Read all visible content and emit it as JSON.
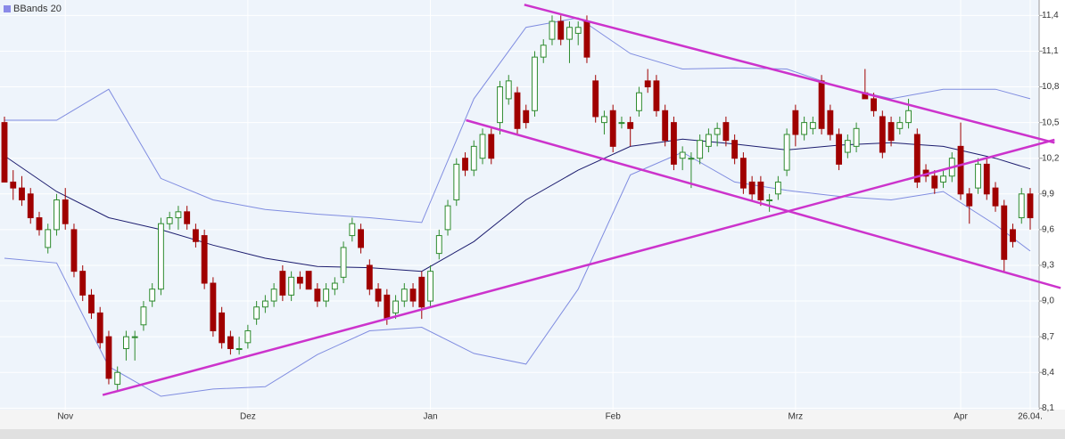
{
  "chart_data": {
    "type": "candlestick",
    "legend": "BBands 20",
    "categories": [
      null,
      null,
      null,
      null,
      null,
      null,
      null,
      "Nov",
      null,
      null,
      null,
      null,
      null,
      null,
      null,
      null,
      null,
      null,
      null,
      null,
      null,
      null,
      null,
      null,
      null,
      null,
      null,
      null,
      "Dez",
      null,
      null,
      null,
      null,
      null,
      null,
      null,
      null,
      null,
      null,
      null,
      null,
      null,
      null,
      null,
      null,
      null,
      null,
      null,
      null,
      "Jan",
      null,
      null,
      null,
      null,
      null,
      null,
      null,
      null,
      null,
      null,
      null,
      null,
      null,
      null,
      null,
      null,
      null,
      null,
      null,
      null,
      "Feb",
      null,
      null,
      null,
      null,
      null,
      null,
      null,
      null,
      null,
      null,
      null,
      null,
      null,
      null,
      null,
      null,
      null,
      null,
      null,
      null,
      "Mrz",
      null,
      null,
      null,
      null,
      null,
      null,
      null,
      null,
      null,
      null,
      null,
      null,
      null,
      null,
      null,
      null,
      null,
      null,
      "Apr",
      null,
      null,
      null,
      null,
      null,
      null,
      null,
      "26.04."
    ],
    "candles": [
      [
        10.5,
        10.55,
        10.0,
        10.0
      ],
      [
        10.0,
        10.1,
        9.85,
        9.95
      ],
      [
        9.95,
        10.05,
        9.8,
        9.85
      ],
      [
        9.9,
        9.95,
        9.65,
        9.7
      ],
      [
        9.7,
        9.75,
        9.55,
        9.6
      ],
      [
        9.45,
        9.65,
        9.4,
        9.6
      ],
      [
        9.6,
        9.9,
        9.55,
        9.85
      ],
      [
        9.85,
        9.95,
        9.6,
        9.65
      ],
      [
        9.6,
        9.65,
        9.2,
        9.25
      ],
      [
        9.25,
        9.3,
        9.0,
        9.05
      ],
      [
        9.05,
        9.1,
        8.85,
        8.9
      ],
      [
        8.9,
        8.95,
        8.6,
        8.65
      ],
      [
        8.7,
        8.75,
        8.3,
        8.35
      ],
      [
        8.3,
        8.45,
        8.25,
        8.4
      ],
      [
        8.6,
        8.75,
        8.5,
        8.7
      ],
      [
        8.7,
        8.75,
        8.5,
        8.7
      ],
      [
        8.8,
        9.0,
        8.75,
        8.95
      ],
      [
        9.0,
        9.15,
        8.95,
        9.1
      ],
      [
        9.1,
        9.7,
        9.05,
        9.65
      ],
      [
        9.65,
        9.75,
        9.6,
        9.7
      ],
      [
        9.7,
        9.8,
        9.6,
        9.75
      ],
      [
        9.75,
        9.8,
        9.6,
        9.65
      ],
      [
        9.6,
        9.65,
        9.45,
        9.5
      ],
      [
        9.55,
        9.6,
        9.1,
        9.15
      ],
      [
        9.15,
        9.2,
        8.7,
        8.75
      ],
      [
        8.9,
        8.95,
        8.6,
        8.65
      ],
      [
        8.7,
        8.75,
        8.55,
        8.6
      ],
      [
        8.6,
        8.7,
        8.55,
        8.6
      ],
      [
        8.65,
        8.8,
        8.6,
        8.75
      ],
      [
        8.85,
        9.0,
        8.8,
        8.95
      ],
      [
        8.95,
        9.05,
        8.9,
        9.0
      ],
      [
        9.0,
        9.15,
        8.95,
        9.1
      ],
      [
        9.25,
        9.3,
        9.0,
        9.05
      ],
      [
        9.05,
        9.25,
        9.0,
        9.2
      ],
      [
        9.2,
        9.25,
        9.1,
        9.15
      ],
      [
        9.25,
        9.25,
        9.1,
        9.1
      ],
      [
        9.1,
        9.15,
        8.95,
        9.0
      ],
      [
        9.0,
        9.15,
        8.95,
        9.1
      ],
      [
        9.1,
        9.2,
        9.05,
        9.15
      ],
      [
        9.2,
        9.5,
        9.15,
        9.45
      ],
      [
        9.55,
        9.7,
        9.5,
        9.65
      ],
      [
        9.6,
        9.65,
        9.4,
        9.45
      ],
      [
        9.3,
        9.35,
        9.05,
        9.1
      ],
      [
        9.1,
        9.15,
        8.95,
        9.0
      ],
      [
        9.05,
        9.1,
        8.8,
        8.85
      ],
      [
        8.9,
        9.05,
        8.85,
        9.0
      ],
      [
        9.0,
        9.15,
        8.95,
        9.1
      ],
      [
        9.1,
        9.15,
        8.95,
        9.0
      ],
      [
        9.2,
        9.25,
        8.85,
        8.95
      ],
      [
        9.0,
        9.3,
        8.95,
        9.25
      ],
      [
        9.4,
        9.6,
        9.35,
        9.55
      ],
      [
        9.6,
        9.85,
        9.55,
        9.8
      ],
      [
        9.85,
        10.2,
        9.8,
        10.15
      ],
      [
        10.2,
        10.25,
        10.05,
        10.1
      ],
      [
        10.1,
        10.35,
        10.05,
        10.3
      ],
      [
        10.2,
        10.45,
        10.15,
        10.4
      ],
      [
        10.4,
        10.45,
        10.15,
        10.2
      ],
      [
        10.5,
        10.85,
        10.4,
        10.8
      ],
      [
        10.7,
        10.9,
        10.65,
        10.85
      ],
      [
        10.75,
        10.8,
        10.4,
        10.45
      ],
      [
        10.6,
        10.65,
        10.45,
        10.5
      ],
      [
        10.6,
        11.1,
        10.55,
        11.05
      ],
      [
        11.05,
        11.2,
        11.0,
        11.15
      ],
      [
        11.2,
        11.4,
        11.15,
        11.35
      ],
      [
        11.35,
        11.4,
        11.15,
        11.2
      ],
      [
        11.2,
        11.35,
        11.0,
        11.3
      ],
      [
        11.25,
        11.35,
        11.15,
        11.3
      ],
      [
        11.35,
        11.4,
        11.0,
        11.05
      ],
      [
        10.85,
        10.9,
        10.5,
        10.55
      ],
      [
        10.5,
        10.6,
        10.4,
        10.55
      ],
      [
        10.6,
        10.65,
        10.25,
        10.3
      ],
      [
        10.5,
        10.55,
        10.45,
        10.5
      ],
      [
        10.5,
        10.55,
        10.3,
        10.45
      ],
      [
        10.6,
        10.8,
        10.55,
        10.75
      ],
      [
        10.85,
        10.95,
        10.75,
        10.8
      ],
      [
        10.85,
        10.9,
        10.55,
        10.6
      ],
      [
        10.6,
        10.65,
        10.3,
        10.35
      ],
      [
        10.5,
        10.55,
        10.1,
        10.15
      ],
      [
        10.2,
        10.3,
        10.1,
        10.25
      ],
      [
        10.2,
        10.25,
        9.95,
        10.2
      ],
      [
        10.2,
        10.4,
        10.15,
        10.35
      ],
      [
        10.3,
        10.45,
        10.25,
        10.4
      ],
      [
        10.4,
        10.5,
        10.3,
        10.45
      ],
      [
        10.5,
        10.55,
        10.3,
        10.35
      ],
      [
        10.35,
        10.4,
        10.15,
        10.2
      ],
      [
        10.2,
        10.25,
        9.9,
        9.95
      ],
      [
        10.0,
        10.05,
        9.85,
        9.9
      ],
      [
        10.0,
        10.05,
        9.8,
        9.85
      ],
      [
        9.85,
        9.9,
        9.75,
        9.85
      ],
      [
        9.9,
        10.05,
        9.85,
        10.0
      ],
      [
        10.1,
        10.45,
        10.05,
        10.4
      ],
      [
        10.6,
        10.65,
        10.3,
        10.4
      ],
      [
        10.4,
        10.55,
        10.35,
        10.5
      ],
      [
        10.45,
        10.55,
        10.4,
        10.5
      ],
      [
        10.85,
        10.9,
        10.4,
        10.45
      ],
      [
        10.6,
        10.65,
        10.35,
        10.4
      ],
      [
        10.4,
        10.45,
        10.1,
        10.15
      ],
      [
        10.25,
        10.4,
        10.2,
        10.35
      ],
      [
        10.3,
        10.5,
        10.25,
        10.45
      ],
      [
        10.75,
        10.95,
        10.7,
        10.7
      ],
      [
        10.7,
        10.75,
        10.55,
        10.6
      ],
      [
        10.55,
        10.6,
        10.2,
        10.25
      ],
      [
        10.5,
        10.55,
        10.3,
        10.35
      ],
      [
        10.45,
        10.55,
        10.4,
        10.5
      ],
      [
        10.5,
        10.7,
        10.45,
        10.6
      ],
      [
        10.4,
        10.45,
        9.95,
        10.0
      ],
      [
        10.1,
        10.15,
        10.0,
        10.05
      ],
      [
        10.05,
        10.1,
        9.9,
        9.95
      ],
      [
        10.0,
        10.1,
        9.95,
        10.05
      ],
      [
        10.05,
        10.25,
        10.0,
        10.2
      ],
      [
        10.3,
        10.5,
        9.85,
        9.9
      ],
      [
        9.9,
        9.95,
        9.65,
        9.8
      ],
      [
        9.95,
        10.2,
        9.9,
        10.15
      ],
      [
        10.15,
        10.2,
        9.85,
        9.9
      ],
      [
        9.95,
        10.0,
        9.75,
        9.8
      ],
      [
        9.8,
        9.85,
        9.25,
        9.35
      ],
      [
        9.6,
        9.65,
        9.45,
        9.5
      ],
      [
        9.7,
        9.95,
        9.65,
        9.9
      ],
      [
        9.9,
        9.95,
        9.6,
        9.7
      ]
    ],
    "up_color": "#2e8b2e",
    "down_color": "#a00000",
    "bands": [
      {
        "color": "#7f8ce0",
        "x": [
          0,
          6,
          12,
          18,
          24,
          30,
          36,
          42,
          48,
          54,
          60,
          66,
          72,
          78,
          84,
          90,
          96,
          102,
          108,
          114,
          118
        ],
        "values": [
          10.52,
          10.52,
          10.78,
          10.03,
          9.85,
          9.77,
          9.73,
          9.7,
          9.66,
          10.7,
          11.3,
          11.38,
          11.08,
          10.95,
          10.96,
          10.95,
          10.8,
          10.7,
          10.78,
          10.78,
          10.7
        ]
      },
      {
        "color": "#1c1c6e",
        "x": [
          0,
          6,
          12,
          18,
          24,
          30,
          36,
          42,
          48,
          54,
          60,
          66,
          72,
          78,
          84,
          90,
          96,
          102,
          108,
          114,
          118
        ],
        "values": [
          10.22,
          9.92,
          9.7,
          9.6,
          9.47,
          9.36,
          9.29,
          9.28,
          9.25,
          9.5,
          9.85,
          10.1,
          10.3,
          10.36,
          10.32,
          10.27,
          10.31,
          10.33,
          10.3,
          10.2,
          10.11
        ]
      },
      {
        "color": "#7f8ce0",
        "x": [
          0,
          6,
          12,
          18,
          24,
          30,
          36,
          42,
          48,
          54,
          60,
          66,
          72,
          78,
          84,
          90,
          96,
          102,
          108,
          114,
          118
        ],
        "values": [
          9.36,
          9.32,
          8.45,
          8.2,
          8.26,
          8.28,
          8.55,
          8.75,
          8.78,
          8.56,
          8.47,
          9.1,
          10.06,
          10.25,
          10.0,
          9.93,
          9.88,
          9.85,
          9.92,
          9.64,
          9.42
        ]
      }
    ],
    "trendlines": [
      {
        "color": "#cc33cc",
        "x": [
          11.3,
          120.8
        ],
        "values": [
          8.21,
          10.355
        ]
      },
      {
        "color": "#cc33cc",
        "x": [
          53.1,
          121.5
        ],
        "values": [
          10.52,
          9.11
        ]
      },
      {
        "color": "#cc33cc",
        "x": [
          59.8,
          120.8
        ],
        "values": [
          11.49,
          10.33
        ]
      }
    ],
    "ylim": [
      8.05,
      11.53
    ],
    "yticks": [
      {
        "value": 8.1,
        "label": "8,1"
      },
      {
        "value": 8.4,
        "label": "8,4"
      },
      {
        "value": 8.7,
        "label": "8,7"
      },
      {
        "value": 9.0,
        "label": "9,0"
      },
      {
        "value": 9.3,
        "label": "9,3"
      },
      {
        "value": 9.6,
        "label": "9,6"
      },
      {
        "value": 9.9,
        "label": "9,9"
      },
      {
        "value": 10.2,
        "label": "10,2"
      },
      {
        "value": 10.5,
        "label": "10,5"
      },
      {
        "value": 10.8,
        "label": "10,8"
      },
      {
        "value": 11.1,
        "label": "11,1"
      },
      {
        "value": 11.4,
        "label": "11,4"
      }
    ],
    "grid": true
  }
}
